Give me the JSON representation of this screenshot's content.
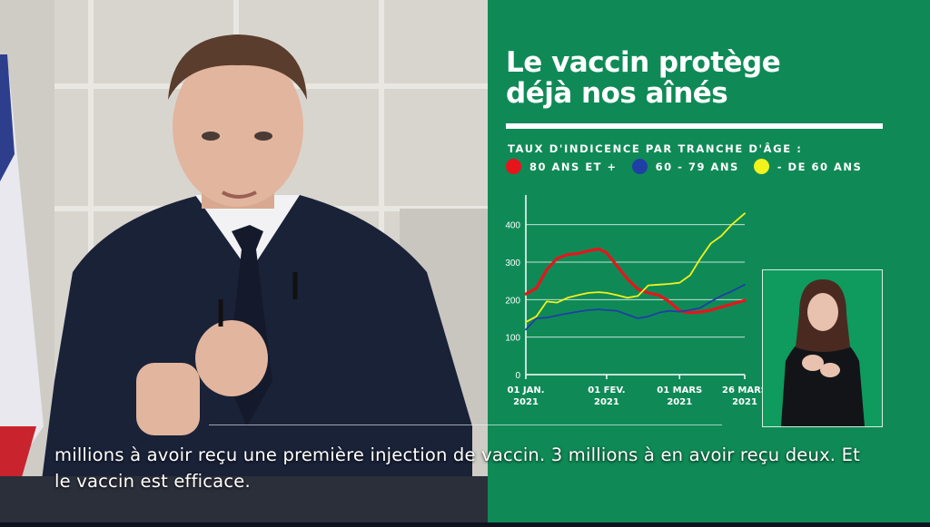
{
  "panel": {
    "title_line1": "Le vaccin protège",
    "title_line2": "déjà nos aînés",
    "subtitle": "TAUX D'INDICENCE PAR TRANCHE D'ÂGE :",
    "colors": {
      "background": "#0f8a56",
      "red": "#e8141b",
      "blue": "#1f3fa6",
      "yellow": "#f2f21c"
    }
  },
  "chart_data": {
    "type": "line",
    "ylim": [
      0,
      450
    ],
    "yticks": [
      0,
      100,
      200,
      300,
      400
    ],
    "grid": true,
    "legend_position": "top",
    "x_ticks": [
      {
        "line1": "01 JAN.",
        "line2": "2021",
        "date": "2021-01-01"
      },
      {
        "line1": "01 FEV.",
        "line2": "2021",
        "date": "2021-02-01"
      },
      {
        "line1": "01 MARS",
        "line2": "2021",
        "date": "2021-03-01"
      },
      {
        "line1": "26 MARS",
        "line2": "2021",
        "date": "2021-03-26"
      }
    ],
    "series": [
      {
        "name": "80 ANS ET +",
        "color": "#e8141b",
        "x": [
          "2021-01-01",
          "2021-01-05",
          "2021-01-09",
          "2021-01-13",
          "2021-01-17",
          "2021-01-21",
          "2021-01-25",
          "2021-01-29",
          "2021-02-01",
          "2021-02-05",
          "2021-02-09",
          "2021-02-13",
          "2021-02-17",
          "2021-02-21",
          "2021-02-25",
          "2021-03-01",
          "2021-03-05",
          "2021-03-09",
          "2021-03-13",
          "2021-03-17",
          "2021-03-21",
          "2021-03-26"
        ],
        "y": [
          215,
          230,
          280,
          310,
          320,
          323,
          330,
          335,
          325,
          290,
          255,
          228,
          218,
          212,
          195,
          170,
          165,
          167,
          172,
          180,
          188,
          198
        ]
      },
      {
        "name": "60 - 79 ANS",
        "color": "#1f3fa6",
        "x": [
          "2021-01-01",
          "2021-01-05",
          "2021-01-09",
          "2021-01-13",
          "2021-01-17",
          "2021-01-21",
          "2021-01-25",
          "2021-01-29",
          "2021-02-01",
          "2021-02-05",
          "2021-02-09",
          "2021-02-13",
          "2021-02-17",
          "2021-02-21",
          "2021-02-25",
          "2021-03-01",
          "2021-03-05",
          "2021-03-09",
          "2021-03-13",
          "2021-03-17",
          "2021-03-21",
          "2021-03-26"
        ],
        "y": [
          120,
          150,
          152,
          158,
          163,
          168,
          172,
          174,
          172,
          170,
          160,
          150,
          155,
          165,
          170,
          168,
          172,
          178,
          195,
          210,
          222,
          240
        ]
      },
      {
        "name": "- DE 60 ANS",
        "color": "#f2f21c",
        "x": [
          "2021-01-01",
          "2021-01-05",
          "2021-01-09",
          "2021-01-13",
          "2021-01-17",
          "2021-01-21",
          "2021-01-25",
          "2021-01-29",
          "2021-02-01",
          "2021-02-05",
          "2021-02-09",
          "2021-02-13",
          "2021-02-17",
          "2021-02-21",
          "2021-02-25",
          "2021-03-01",
          "2021-03-05",
          "2021-03-09",
          "2021-03-13",
          "2021-03-17",
          "2021-03-21",
          "2021-03-26"
        ],
        "y": [
          140,
          155,
          195,
          192,
          205,
          212,
          218,
          220,
          218,
          212,
          205,
          210,
          238,
          240,
          242,
          245,
          265,
          310,
          350,
          370,
          400,
          430
        ]
      }
    ]
  },
  "subtitles": {
    "line1": "millions à avoir reçu une première injection de vaccin. 3 millions à en avoir reçu deux. Et",
    "line2": "le vaccin est efficace."
  },
  "colors": {
    "suit": "#1a2238",
    "wall": "#d9d6d0"
  }
}
